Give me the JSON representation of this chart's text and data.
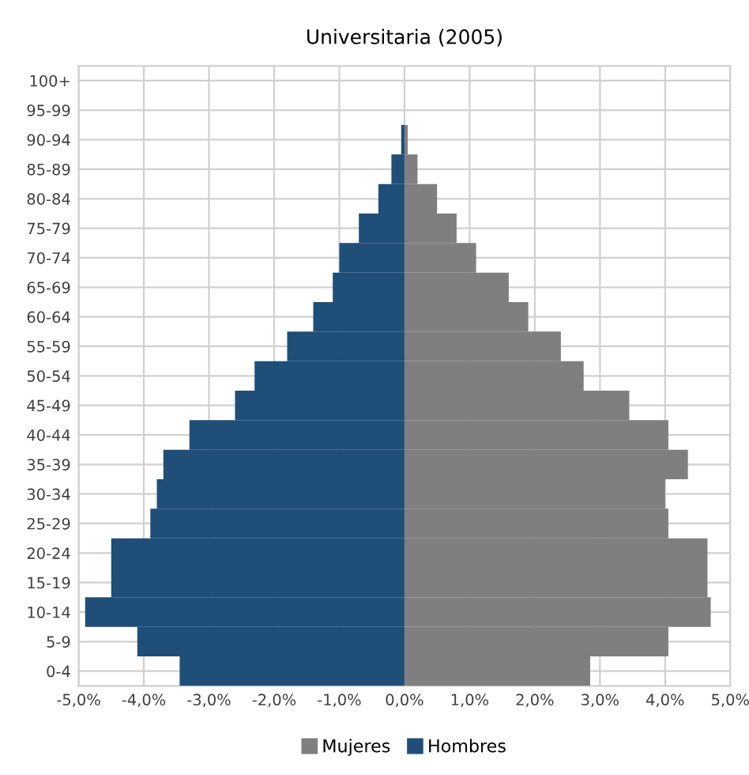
{
  "chart_data": {
    "type": "bar",
    "orientation": "horizontal",
    "title": "Universitaria (2005)",
    "categories": [
      "100+",
      "95-99",
      "90-94",
      "85-89",
      "80-84",
      "75-79",
      "70-74",
      "65-69",
      "60-64",
      "55-59",
      "50-54",
      "45-49",
      "40-44",
      "35-39",
      "30-34",
      "25-29",
      "20-24",
      "15-19",
      "10-14",
      "5-9",
      "0-4"
    ],
    "series": [
      {
        "name": "Mujeres",
        "color": "#7f7f7f",
        "values": [
          0,
          0,
          0.05,
          0.2,
          0.5,
          0.8,
          1.1,
          1.6,
          1.9,
          2.4,
          2.75,
          3.45,
          4.05,
          4.35,
          4.0,
          4.05,
          4.65,
          4.65,
          4.7,
          4.05,
          2.85
        ]
      },
      {
        "name": "Hombres",
        "color": "#1f4e79",
        "values": [
          0,
          0,
          -0.05,
          -0.2,
          -0.4,
          -0.7,
          -1.0,
          -1.1,
          -1.4,
          -1.8,
          -2.3,
          -2.6,
          -3.3,
          -3.7,
          -3.8,
          -3.9,
          -4.5,
          -4.5,
          -4.9,
          -4.1,
          -3.45
        ]
      }
    ],
    "xlim": [
      -5,
      5
    ],
    "xticks": [
      {
        "value": -5,
        "label": "-5,0%"
      },
      {
        "value": -4,
        "label": "-4,0%"
      },
      {
        "value": -3,
        "label": "-3,0%"
      },
      {
        "value": -2,
        "label": "-2,0%"
      },
      {
        "value": -1,
        "label": "-1,0%"
      },
      {
        "value": 0,
        "label": "0,0%"
      },
      {
        "value": 1,
        "label": "1,0%"
      },
      {
        "value": 2,
        "label": "2,0%"
      },
      {
        "value": 3,
        "label": "3,0%"
      },
      {
        "value": 4,
        "label": "4,0%"
      },
      {
        "value": 5,
        "label": "5,0%"
      }
    ],
    "grid": true,
    "legend": "bottom",
    "stacked": true
  }
}
